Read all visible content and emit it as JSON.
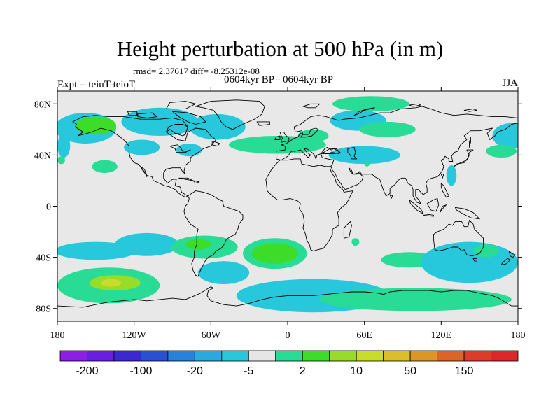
{
  "title": "Height perturbation at 500 hPa (in m)",
  "stats": "rmsd= 2.37617 diff= -8.25312e-08",
  "subtitle": "0604kyr BP - 0604kyr BP",
  "left_label": "Expt = teiuT-teioT",
  "right_label": "JJA",
  "map": {
    "projection": "cylindrical-equidistant",
    "lon_range": [
      -180,
      180
    ],
    "lat_range": [
      -90,
      90
    ],
    "background_color": "#e8e8e8",
    "x_ticks": [
      {
        "value": -180,
        "label": "180"
      },
      {
        "value": -120,
        "label": "120W"
      },
      {
        "value": -60,
        "label": "60W"
      },
      {
        "value": 0,
        "label": "0"
      },
      {
        "value": 60,
        "label": "60E"
      },
      {
        "value": 120,
        "label": "120E"
      },
      {
        "value": 180,
        "label": "180"
      }
    ],
    "y_ticks": [
      {
        "value": 80,
        "label": "80N"
      },
      {
        "value": 40,
        "label": "40N"
      },
      {
        "value": 0,
        "label": "0"
      },
      {
        "value": -40,
        "label": "40S"
      },
      {
        "value": -80,
        "label": "80S"
      }
    ]
  },
  "colorbar": {
    "colors": [
      "#8c1ee6",
      "#6a1ee0",
      "#3c28d2",
      "#2850d2",
      "#2882dc",
      "#28aadc",
      "#28c8dc",
      "#e6e6e6",
      "#28dc96",
      "#3cdc28",
      "#96dc28",
      "#c8dc28",
      "#dcbe28",
      "#dc9628",
      "#dc6428",
      "#dc3c28",
      "#dc2828"
    ],
    "labels": [
      {
        "after_box": 0,
        "text": "-200"
      },
      {
        "after_box": 2,
        "text": "-100"
      },
      {
        "after_box": 4,
        "text": "-20"
      },
      {
        "after_box": 6,
        "text": "-5"
      },
      {
        "after_box": 8,
        "text": "2"
      },
      {
        "after_box": 10,
        "text": "10"
      },
      {
        "after_box": 12,
        "text": "50"
      },
      {
        "after_box": 14,
        "text": "150"
      }
    ]
  },
  "anomaly_regions": [
    {
      "lon": -158,
      "lat": 61,
      "rx": 24,
      "ry": 12,
      "color": "#28c8dc"
    },
    {
      "lon": -150,
      "lat": 63,
      "rx": 16,
      "ry": 7,
      "color": "#3cdc28"
    },
    {
      "lon": -175,
      "lat": 47,
      "rx": 5,
      "ry": 9,
      "color": "#28c8dc"
    },
    {
      "lon": -100,
      "lat": 66,
      "rx": 30,
      "ry": 11,
      "color": "#28c8dc"
    },
    {
      "lon": -55,
      "lat": 62,
      "rx": 22,
      "ry": 10,
      "color": "#28c8dc"
    },
    {
      "lon": -114,
      "lat": 46,
      "rx": 14,
      "ry": 6,
      "color": "#28c8dc"
    },
    {
      "lon": -77,
      "lat": 44,
      "rx": 10,
      "ry": 5,
      "color": "#28c8dc"
    },
    {
      "lon": -177,
      "lat": 36,
      "rx": 3,
      "ry": 3,
      "color": "#28dc96"
    },
    {
      "lon": -143,
      "lat": 31,
      "rx": 10,
      "ry": 5,
      "color": "#28dc96"
    },
    {
      "lon": -8,
      "lat": 48,
      "rx": 38,
      "ry": 7,
      "color": "#28dc96"
    },
    {
      "lon": 20,
      "lat": 55,
      "rx": 12,
      "ry": 5,
      "color": "#28dc96"
    },
    {
      "lon": 55,
      "lat": 67,
      "rx": 22,
      "ry": 8,
      "color": "#28c8dc"
    },
    {
      "lon": 65,
      "lat": 80,
      "rx": 30,
      "ry": 6,
      "color": "#28dc96"
    },
    {
      "lon": 78,
      "lat": 60,
      "rx": 22,
      "ry": 6,
      "color": "#28dc96"
    },
    {
      "lon": 60,
      "lat": 40,
      "rx": 28,
      "ry": 7,
      "color": "#28c8dc"
    },
    {
      "lon": 62,
      "lat": 33,
      "rx": 2,
      "ry": 2,
      "color": "#28dc96"
    },
    {
      "lon": 175,
      "lat": 55,
      "rx": 15,
      "ry": 10,
      "color": "#28c8dc"
    },
    {
      "lon": 167,
      "lat": 43,
      "rx": 12,
      "ry": 5,
      "color": "#28dc96"
    },
    {
      "lon": 128,
      "lat": 24,
      "rx": 4,
      "ry": 8,
      "color": "#28c8dc"
    },
    {
      "lon": -150,
      "lat": -35,
      "rx": 32,
      "ry": 7,
      "color": "#28c8dc"
    },
    {
      "lon": -110,
      "lat": -30,
      "rx": 25,
      "ry": 9,
      "color": "#28c8dc"
    },
    {
      "lon": -65,
      "lat": -32,
      "rx": 26,
      "ry": 9,
      "color": "#28dc96"
    },
    {
      "lon": -70,
      "lat": -30,
      "rx": 10,
      "ry": 4,
      "color": "#3cdc28"
    },
    {
      "lon": -50,
      "lat": -52,
      "rx": 20,
      "ry": 9,
      "color": "#28c8dc"
    },
    {
      "lon": -10,
      "lat": -37,
      "rx": 25,
      "ry": 12,
      "color": "#28dc96"
    },
    {
      "lon": -10,
      "lat": -37,
      "rx": 18,
      "ry": 8,
      "color": "#3cdc28"
    },
    {
      "lon": 53,
      "lat": -28,
      "rx": 3,
      "ry": 3,
      "color": "#28dc96"
    },
    {
      "lon": 95,
      "lat": -42,
      "rx": 22,
      "ry": 6,
      "color": "#28dc96"
    },
    {
      "lon": 142,
      "lat": -44,
      "rx": 38,
      "ry": 16,
      "color": "#28c8dc"
    },
    {
      "lon": 155,
      "lat": -35,
      "rx": 10,
      "ry": 5,
      "color": "#28dc96"
    },
    {
      "lon": 20,
      "lat": -70,
      "rx": 60,
      "ry": 13,
      "color": "#28c8dc"
    },
    {
      "lon": 100,
      "lat": -73,
      "rx": 75,
      "ry": 9,
      "color": "#28dc96"
    },
    {
      "lon": -140,
      "lat": -62,
      "rx": 40,
      "ry": 14,
      "color": "#28dc96"
    },
    {
      "lon": -135,
      "lat": -60,
      "rx": 20,
      "ry": 6,
      "color": "#96dc28"
    },
    {
      "lon": -138,
      "lat": -60,
      "rx": 8,
      "ry": 3,
      "color": "#c8dc28"
    }
  ]
}
